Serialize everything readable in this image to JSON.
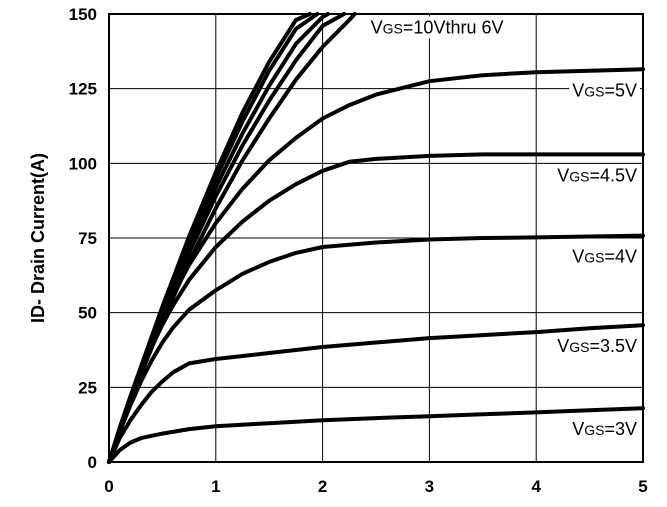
{
  "chart_data": {
    "type": "line",
    "title": "",
    "xlabel": "",
    "ylabel": "ID- Drain Current(A)",
    "xlim": [
      0,
      5
    ],
    "ylim": [
      0,
      150
    ],
    "xticks": [
      0,
      1,
      2,
      3,
      4,
      5
    ],
    "yticks": [
      0,
      25,
      50,
      75,
      100,
      125,
      150
    ],
    "grid": true,
    "series": [
      {
        "name": "VGS=3V",
        "label_main": "V",
        "label_sub": "GS",
        "label_rest": "=3V",
        "x": [
          0,
          0.1,
          0.2,
          0.3,
          0.5,
          0.75,
          1,
          1.5,
          2,
          2.5,
          3,
          3.5,
          4,
          4.5,
          5
        ],
        "y": [
          0,
          4,
          6.5,
          8,
          9.5,
          11,
          12,
          13,
          14,
          14.7,
          15.3,
          16,
          16.6,
          17.3,
          18
        ]
      },
      {
        "name": "VGS=3.5V",
        "label_main": "V",
        "label_sub": "GS",
        "label_rest": "=3.5V",
        "x": [
          0,
          0.1,
          0.2,
          0.3,
          0.4,
          0.5,
          0.6,
          0.75,
          1,
          1.5,
          2,
          2.5,
          3,
          3.5,
          4,
          4.5,
          5
        ],
        "y": [
          0,
          8,
          14,
          19,
          23.5,
          27,
          30,
          33,
          34.5,
          36.5,
          38.5,
          40,
          41.5,
          42.5,
          43.5,
          44.8,
          45.8
        ]
      },
      {
        "name": "VGS=4V",
        "label_main": "V",
        "label_sub": "GS",
        "label_rest": "=4V",
        "x": [
          0,
          0.1,
          0.2,
          0.3,
          0.4,
          0.5,
          0.6,
          0.75,
          1,
          1.25,
          1.5,
          1.75,
          2,
          2.5,
          3,
          3.5,
          4,
          4.5,
          5
        ],
        "y": [
          0,
          10,
          19,
          27,
          34,
          40,
          45,
          51,
          57.5,
          63,
          67,
          70,
          72,
          73.5,
          74.5,
          75,
          75.2,
          75.5,
          75.8
        ]
      },
      {
        "name": "VGS=4.5V",
        "label_main": "V",
        "label_sub": "GS",
        "label_rest": "=4.5V",
        "x": [
          0,
          0.1,
          0.2,
          0.3,
          0.4,
          0.5,
          0.6,
          0.75,
          1,
          1.25,
          1.5,
          1.75,
          2,
          2.25,
          2.5,
          3,
          3.5,
          4,
          4.5,
          5
        ],
        "y": [
          0,
          11,
          21,
          30,
          38.5,
          46,
          52.5,
          61,
          72,
          80.5,
          87.5,
          93,
          97.5,
          100.5,
          101.5,
          102.5,
          103,
          103,
          103,
          103
        ]
      },
      {
        "name": "VGS=5V",
        "label_main": "V",
        "label_sub": "GS",
        "label_rest": "=5V",
        "x": [
          0,
          0.1,
          0.2,
          0.3,
          0.4,
          0.5,
          0.6,
          0.75,
          1,
          1.25,
          1.5,
          1.75,
          2,
          2.25,
          2.5,
          3,
          3.5,
          4,
          4.5,
          5
        ],
        "y": [
          0,
          11.5,
          22,
          31.5,
          40.5,
          48.5,
          56,
          66,
          80,
          91.5,
          101,
          108.5,
          115,
          119.5,
          123,
          127.5,
          129.5,
          130.5,
          131,
          131.5
        ]
      },
      {
        "name": "VGS=10Vthru 6V",
        "label_main": "V",
        "label_sub": "GS",
        "label_rest": "=10Vthru 6V",
        "label_x": 2.45,
        "label_y": 143.5,
        "x": [
          0,
          0.25,
          0.5,
          0.75,
          1,
          1.25,
          1.5,
          1.75,
          2,
          2.25,
          2.3
        ],
        "y": [
          0,
          25,
          47,
          67,
          85,
          101,
          115,
          128,
          139,
          148,
          150
        ]
      },
      {
        "name": "",
        "x": [
          0,
          0.25,
          0.5,
          0.75,
          1,
          1.25,
          1.5,
          1.75,
          2,
          2.2
        ],
        "y": [
          0,
          25.5,
          48.5,
          70,
          89,
          106,
          121,
          134.5,
          146,
          150
        ]
      },
      {
        "name": "",
        "x": [
          0,
          0.25,
          0.5,
          0.75,
          1,
          1.25,
          1.5,
          1.75,
          2,
          2.05
        ],
        "y": [
          0,
          26,
          50,
          72,
          92,
          110,
          126,
          140,
          149,
          150
        ]
      },
      {
        "name": "",
        "x": [
          0,
          0.25,
          0.5,
          0.75,
          1,
          1.25,
          1.5,
          1.75,
          1.95
        ],
        "y": [
          0,
          26.5,
          51,
          74,
          95,
          114,
          131,
          145,
          150
        ]
      },
      {
        "name": "",
        "x": [
          0,
          0.25,
          0.5,
          0.75,
          1,
          1.25,
          1.5,
          1.75,
          1.88
        ],
        "y": [
          0,
          27,
          52,
          75.5,
          97,
          117,
          134,
          148,
          150
        ]
      }
    ]
  }
}
